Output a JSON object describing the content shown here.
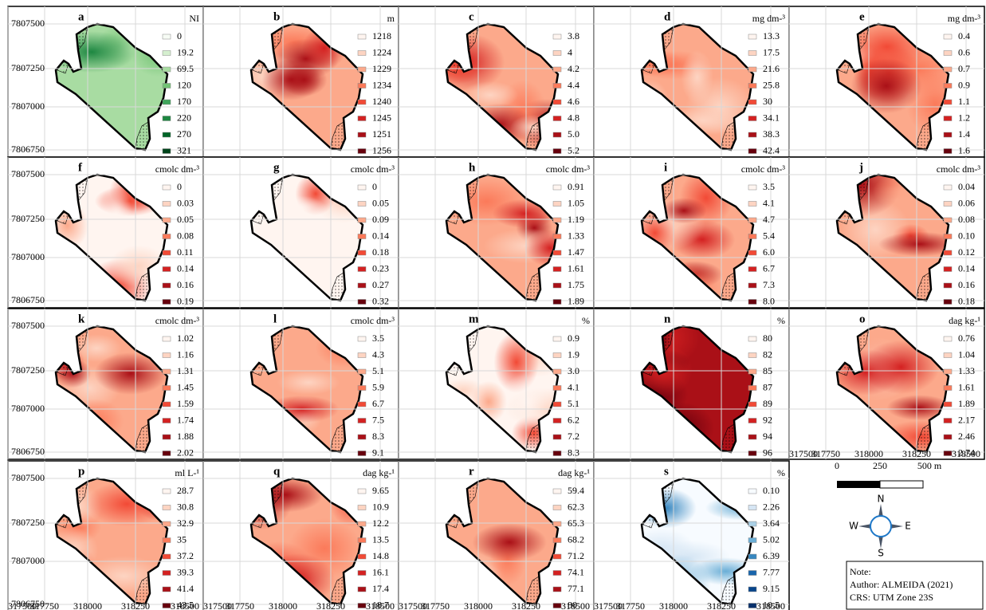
{
  "panels": [
    {
      "letter": "a",
      "unit": "NI",
      "palette": "Greens",
      "legend": [
        "0",
        "19.2",
        "69.5",
        "120",
        "170",
        "220",
        "270",
        "321"
      ]
    },
    {
      "letter": "b",
      "unit": "m",
      "palette": "Reds",
      "legend": [
        "1218",
        "1224",
        "1229",
        "1234",
        "1240",
        "1245",
        "1251",
        "1256"
      ]
    },
    {
      "letter": "c",
      "palette": "Reds",
      "legend": [
        "3.8",
        "4",
        "4.2",
        "4.4",
        "4.6",
        "4.8",
        "5.0",
        "5.2"
      ]
    },
    {
      "letter": "d",
      "unit": "mg dm-³",
      "palette": "Reds",
      "legend": [
        "13.3",
        "17.5",
        "21.6",
        "25.8",
        "30",
        "34.1",
        "38.3",
        "42.4"
      ]
    },
    {
      "letter": "e",
      "unit": "mg dm-³",
      "palette": "Reds",
      "legend": [
        "0.4",
        "0.6",
        "0.7",
        "0.9",
        "1.1",
        "1.2",
        "1.4",
        "1.6"
      ]
    },
    {
      "letter": "f",
      "unit": "cmolc dm-³",
      "palette": "Reds",
      "legend": [
        "0",
        "0.03",
        "0.05",
        "0.08",
        "0.11",
        "0.14",
        "0.16",
        "0.19"
      ]
    },
    {
      "letter": "g",
      "unit": "cmolc dm-³",
      "palette": "Reds",
      "legend": [
        "0",
        "0.05",
        "0.09",
        "0.14",
        "0.18",
        "0.23",
        "0.27",
        "0.32"
      ]
    },
    {
      "letter": "h",
      "unit": "cmolc dm-³",
      "palette": "Reds",
      "legend": [
        "0.91",
        "1.05",
        "1.19",
        "1.33",
        "1.47",
        "1.61",
        "1.75",
        "1.89"
      ]
    },
    {
      "letter": "i",
      "unit": "cmolc dm-³",
      "palette": "Reds",
      "legend": [
        "3.5",
        "4.1",
        "4.7",
        "5.4",
        "6.0",
        "6.7",
        "7.3",
        "8.0"
      ]
    },
    {
      "letter": "j",
      "unit": "cmolc dm-³",
      "palette": "Reds",
      "legend": [
        "0.04",
        "0.06",
        "0.08",
        "0.10",
        "0.12",
        "0.14",
        "0.16",
        "0.18"
      ]
    },
    {
      "letter": "k",
      "unit": "cmolc dm-³",
      "palette": "Reds",
      "legend": [
        "1.02",
        "1.16",
        "1.31",
        "1.45",
        "1.59",
        "1.74",
        "1.88",
        "2.02"
      ]
    },
    {
      "letter": "l",
      "unit": "cmolc dm-³",
      "palette": "Reds",
      "legend": [
        "3.5",
        "4.3",
        "5.1",
        "5.9",
        "6.7",
        "7.5",
        "8.3",
        "9.1"
      ]
    },
    {
      "letter": "m",
      "unit": "%",
      "palette": "Reds",
      "legend": [
        "0.9",
        "1.9",
        "3.0",
        "4.1",
        "5.1",
        "6.2",
        "7.2",
        "8.3"
      ]
    },
    {
      "letter": "n",
      "unit": "%",
      "palette": "Reds",
      "legend": [
        "80",
        "82",
        "85",
        "87",
        "89",
        "92",
        "94",
        "96"
      ]
    },
    {
      "letter": "o",
      "unit": "dag kg-¹",
      "palette": "Reds",
      "legend": [
        "0.76",
        "1.04",
        "1.33",
        "1.61",
        "1.89",
        "2.17",
        "2.46",
        "2.74"
      ]
    },
    {
      "letter": "p",
      "unit": "ml L-¹",
      "palette": "Reds",
      "legend": [
        "28.7",
        "30.8",
        "32.9",
        "35",
        "37.2",
        "39.3",
        "41.4",
        "43.5"
      ]
    },
    {
      "letter": "q",
      "unit": "dag kg-¹",
      "palette": "Reds",
      "legend": [
        "9.65",
        "10.9",
        "12.2",
        "13.5",
        "14.8",
        "16.1",
        "17.4",
        "18.7"
      ]
    },
    {
      "letter": "r",
      "unit": "dag kg-¹",
      "palette": "Reds",
      "legend": [
        "59.4",
        "62.3",
        "65.3",
        "68.2",
        "71.2",
        "74.1",
        "77.1",
        "80"
      ]
    },
    {
      "letter": "s",
      "unit": "%",
      "palette": "Blues",
      "legend": [
        "0.10",
        "2.26",
        "3.64",
        "5.02",
        "6.39",
        "7.77",
        "9.15",
        "10.5"
      ]
    }
  ],
  "y_ticks": [
    "7807500",
    "7807250",
    "7807000",
    "7806750"
  ],
  "x_ticks": [
    "317500",
    "317750",
    "318000",
    "318250",
    "318500"
  ],
  "scale_bar": [
    "0",
    "250",
    "500 m"
  ],
  "compass": [
    "N",
    "S",
    "E",
    "W"
  ],
  "note": [
    "Note:",
    "Author: ALMEIDA (2021)",
    "CRS: UTM Zone 23S"
  ]
}
